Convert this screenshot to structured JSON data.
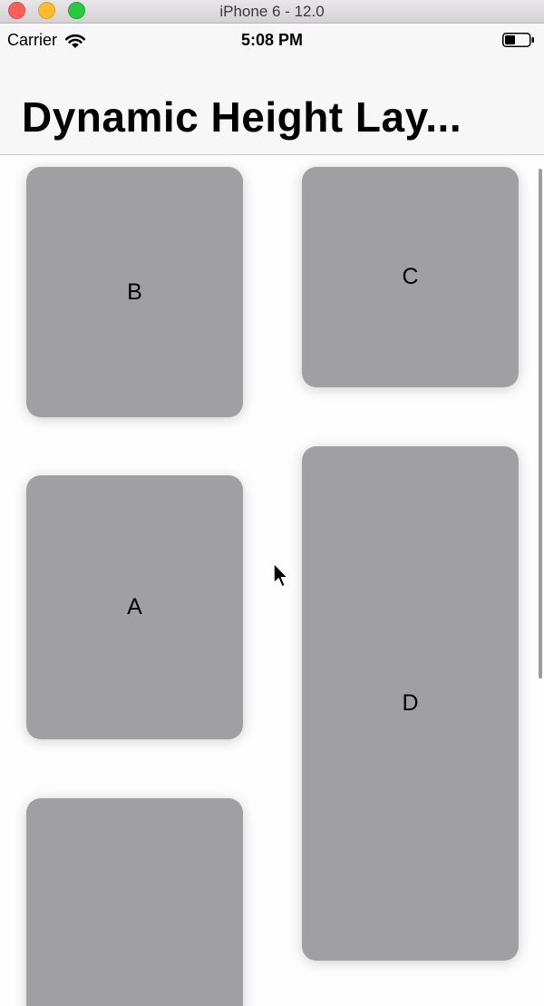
{
  "window": {
    "title": "iPhone 6 - 12.0"
  },
  "status_bar": {
    "carrier": "Carrier",
    "time": "5:08 PM",
    "icons": [
      "wifi-icon",
      "battery-icon"
    ]
  },
  "nav": {
    "title": "Dynamic Height Lay..."
  },
  "cards": [
    {
      "label": "B"
    },
    {
      "label": "C"
    },
    {
      "label": "A"
    },
    {
      "label": "D"
    },
    {
      "label": ""
    }
  ],
  "colors": {
    "card": "#a09fa2",
    "nav_background": "#f7f7f8",
    "traffic_close": "#fc5f57",
    "traffic_minimize": "#fdbc2e",
    "traffic_maximize": "#29c840"
  }
}
